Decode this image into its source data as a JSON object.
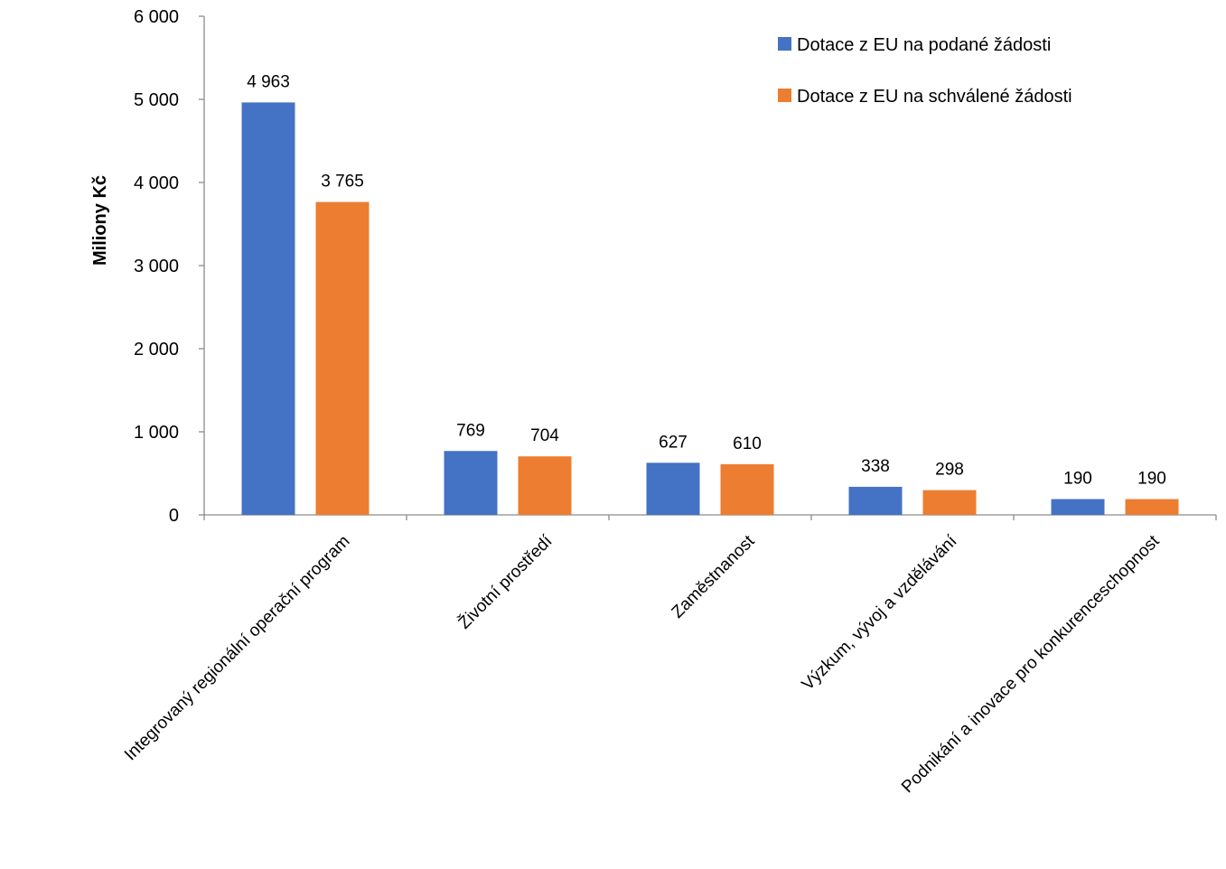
{
  "chart_data": {
    "type": "bar",
    "title": "",
    "xlabel": "",
    "ylabel": "Miliony Kč",
    "ylim": [
      0,
      6000
    ],
    "yticks": [
      0,
      1000,
      2000,
      3000,
      4000,
      5000,
      6000
    ],
    "ytick_labels": [
      "0",
      "1 000",
      "2 000",
      "3 000",
      "4 000",
      "5 000",
      "6 000"
    ],
    "grid": false,
    "legend_position": "top-right",
    "categories": [
      "Integrovaný regionální operační program",
      "Životní prostředí",
      "Zaměstnanost",
      "Výzkum, vývoj a vzdělávání",
      "Podnikání a inovace pro konkurenceschopnost"
    ],
    "series": [
      {
        "name": "Dotace z EU na podané žádosti",
        "color": "#4472C4",
        "values": [
          4963,
          769,
          627,
          338,
          190
        ],
        "labels": [
          "4 963",
          "769",
          "627",
          "338",
          "190"
        ]
      },
      {
        "name": "Dotace z EU na schválené žádosti",
        "color": "#ED7D31",
        "values": [
          3765,
          704,
          610,
          298,
          190
        ],
        "labels": [
          "3 765",
          "704",
          "610",
          "298",
          "190"
        ]
      }
    ]
  }
}
